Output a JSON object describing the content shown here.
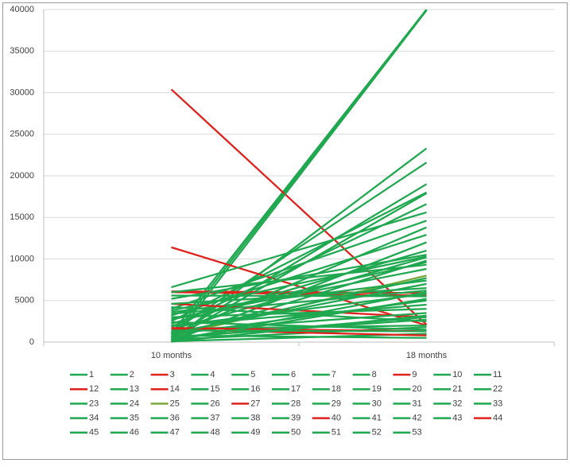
{
  "chart_data": {
    "type": "line",
    "categories": [
      "10 months",
      "18 months"
    ],
    "ylim": [
      0,
      40000
    ],
    "yticks": [
      0,
      5000,
      10000,
      15000,
      20000,
      25000,
      30000,
      35000,
      40000
    ],
    "grid": true,
    "legend": "bottom",
    "series": [
      {
        "name": "1",
        "color": "#1fa84f",
        "values": [
          500,
          40000
        ]
      },
      {
        "name": "2",
        "color": "#1fa84f",
        "values": [
          1000,
          40000
        ]
      },
      {
        "name": "3",
        "color": "#e0201b",
        "values": [
          30400,
          2100
        ]
      },
      {
        "name": "4",
        "color": "#1fa84f",
        "values": [
          0,
          39900
        ]
      },
      {
        "name": "5",
        "color": "#1fa84f",
        "values": [
          200,
          23300
        ]
      },
      {
        "name": "6",
        "color": "#1fa84f",
        "values": [
          1200,
          21600
        ]
      },
      {
        "name": "7",
        "color": "#1fa84f",
        "values": [
          600,
          19000
        ]
      },
      {
        "name": "8",
        "color": "#1fa84f",
        "values": [
          2500,
          18000
        ]
      },
      {
        "name": "9",
        "color": "#e0201b",
        "values": [
          11400,
          2000
        ]
      },
      {
        "name": "10",
        "color": "#1fa84f",
        "values": [
          300,
          17900
        ]
      },
      {
        "name": "11",
        "color": "#1fa84f",
        "values": [
          1800,
          16600
        ]
      },
      {
        "name": "12",
        "color": "#e0201b",
        "values": [
          6100,
          5900
        ]
      },
      {
        "name": "13",
        "color": "#1fa84f",
        "values": [
          6600,
          15600
        ]
      },
      {
        "name": "14",
        "color": "#e0201b",
        "values": [
          6000,
          5600
        ]
      },
      {
        "name": "15",
        "color": "#1fa84f",
        "values": [
          4000,
          14600
        ]
      },
      {
        "name": "16",
        "color": "#1fa84f",
        "values": [
          800,
          13800
        ]
      },
      {
        "name": "17",
        "color": "#1fa84f",
        "values": [
          3200,
          12900
        ]
      },
      {
        "name": "18",
        "color": "#1fa84f",
        "values": [
          100,
          12000
        ]
      },
      {
        "name": "19",
        "color": "#1fa84f",
        "values": [
          2200,
          11000
        ]
      },
      {
        "name": "20",
        "color": "#1fa84f",
        "values": [
          5200,
          10500
        ]
      },
      {
        "name": "21",
        "color": "#1fa84f",
        "values": [
          1500,
          10200
        ]
      },
      {
        "name": "22",
        "color": "#1fa84f",
        "values": [
          400,
          9800
        ]
      },
      {
        "name": "23",
        "color": "#1fa84f",
        "values": [
          6000,
          9300
        ]
      },
      {
        "name": "24",
        "color": "#1fa84f",
        "values": [
          2800,
          8800
        ]
      },
      {
        "name": "25",
        "color": "#7aa83a",
        "values": [
          700,
          8000
        ]
      },
      {
        "name": "26",
        "color": "#1fa84f",
        "values": [
          3600,
          7400
        ]
      },
      {
        "name": "27",
        "color": "#e0201b",
        "values": [
          4600,
          3000
        ]
      },
      {
        "name": "28",
        "color": "#1fa84f",
        "values": [
          1100,
          7000
        ]
      },
      {
        "name": "29",
        "color": "#1fa84f",
        "values": [
          4600,
          6500
        ]
      },
      {
        "name": "30",
        "color": "#1fa84f",
        "values": [
          200,
          6000
        ]
      },
      {
        "name": "31",
        "color": "#1fa84f",
        "values": [
          5600,
          5500
        ]
      },
      {
        "name": "32",
        "color": "#1fa84f",
        "values": [
          900,
          5000
        ]
      },
      {
        "name": "33",
        "color": "#1fa84f",
        "values": [
          2000,
          4500
        ]
      },
      {
        "name": "34",
        "color": "#1fa84f",
        "values": [
          3000,
          4000
        ]
      },
      {
        "name": "35",
        "color": "#1fa84f",
        "values": [
          1300,
          3500
        ]
      },
      {
        "name": "36",
        "color": "#1fa84f",
        "values": [
          500,
          3000
        ]
      },
      {
        "name": "37",
        "color": "#1fa84f",
        "values": [
          4200,
          2500
        ]
      },
      {
        "name": "38",
        "color": "#1fa84f",
        "values": [
          1600,
          2000
        ]
      },
      {
        "name": "39",
        "color": "#1fa84f",
        "values": [
          300,
          1800
        ]
      },
      {
        "name": "40",
        "color": "#e0201b",
        "values": [
          1700,
          1300
        ]
      },
      {
        "name": "41",
        "color": "#1fa84f",
        "values": [
          2400,
          1500
        ]
      },
      {
        "name": "42",
        "color": "#1fa84f",
        "values": [
          100,
          1000
        ]
      },
      {
        "name": "43",
        "color": "#1fa84f",
        "values": [
          800,
          500
        ]
      },
      {
        "name": "44",
        "color": "#e0201b",
        "values": [
          1500,
          800
        ]
      },
      {
        "name": "45",
        "color": "#1fa84f",
        "values": [
          3400,
          6200
        ]
      },
      {
        "name": "46",
        "color": "#1fa84f",
        "values": [
          1900,
          5800
        ]
      },
      {
        "name": "47",
        "color": "#1fa84f",
        "values": [
          600,
          2700
        ]
      },
      {
        "name": "48",
        "color": "#1fa84f",
        "values": [
          2700,
          9600
        ]
      },
      {
        "name": "49",
        "color": "#1fa84f",
        "values": [
          1000,
          7700
        ]
      },
      {
        "name": "50",
        "color": "#1fa84f",
        "values": [
          50,
          3200
        ]
      },
      {
        "name": "51",
        "color": "#1fa84f",
        "values": [
          1400,
          1300
        ]
      },
      {
        "name": "52",
        "color": "#1fa84f",
        "values": [
          3800,
          10300
        ]
      },
      {
        "name": "53",
        "color": "#1fa84f",
        "values": [
          200,
          5200
        ]
      }
    ]
  }
}
